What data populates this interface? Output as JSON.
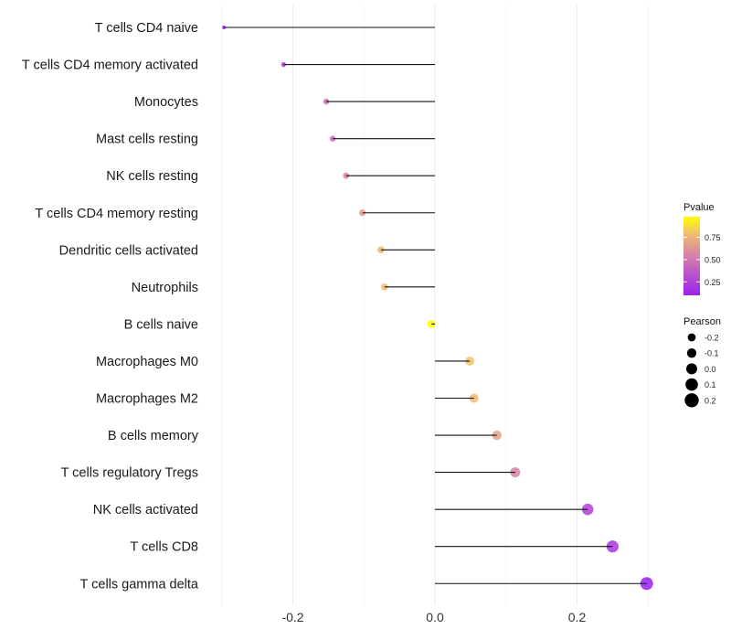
{
  "chart_data": {
    "type": "lollipop",
    "title": "",
    "xlabel": "",
    "ylabel": "",
    "xlim": [
      -0.32,
      0.32
    ],
    "x_ticks": [
      -0.2,
      0.0,
      0.2
    ],
    "x_tick_labels": [
      "-0.2",
      "0.0",
      "0.2"
    ],
    "grid": true,
    "categories": [
      "T cells CD4 naive",
      "T cells CD4 memory activated",
      "Monocytes",
      "Mast cells resting",
      "NK cells resting",
      "T cells CD4 memory resting",
      "Dendritic cells activated",
      "Neutrophils",
      "B cells naive",
      "Macrophages M0",
      "Macrophages M2",
      "B cells memory",
      "T cells regulatory  Tregs ",
      "NK cells activated",
      "T cells CD8",
      "T cells gamma delta"
    ],
    "pearson": [
      -0.297,
      -0.213,
      -0.153,
      -0.144,
      -0.125,
      -0.102,
      -0.076,
      -0.071,
      -0.005,
      0.049,
      0.055,
      0.087,
      0.113,
      0.215,
      0.25,
      0.298
    ],
    "pvalue": [
      0.1,
      0.25,
      0.45,
      0.47,
      0.55,
      0.65,
      0.78,
      0.79,
      0.98,
      0.8,
      0.78,
      0.68,
      0.55,
      0.25,
      0.2,
      0.1
    ],
    "legend": {
      "placement": "right",
      "color_title": "Pvalue",
      "color_ticks": [
        0.75,
        0.5,
        0.25
      ],
      "color_tick_labels": [
        "0.75",
        "0.50",
        "0.25"
      ],
      "color_range": [
        0.1,
        0.98
      ],
      "colors": [
        "#9B1FF2",
        "#D580A8",
        "#F2C06A",
        "#FFFF00"
      ],
      "size_title": "Pearson",
      "size_values": [
        -0.2,
        -0.1,
        0.0,
        0.1,
        0.2
      ],
      "size_labels": [
        "-0.2",
        "-0.1",
        "0.0",
        "0.1",
        "0.2"
      ]
    }
  }
}
